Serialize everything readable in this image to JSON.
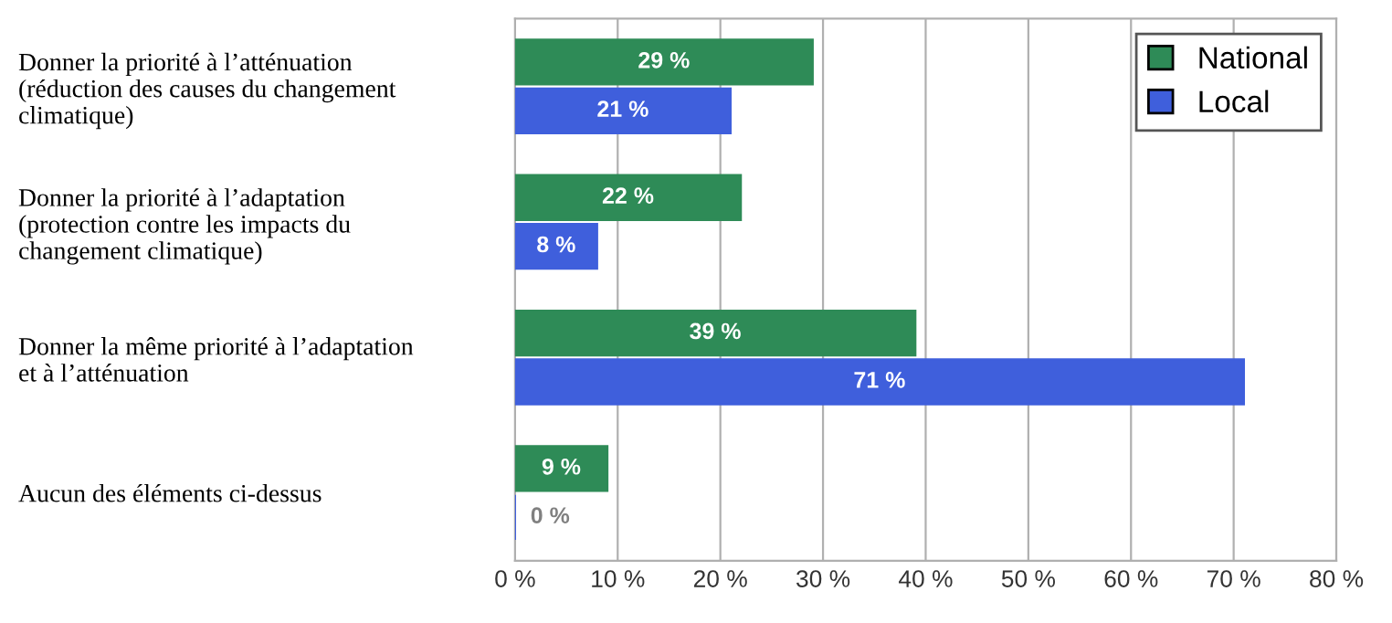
{
  "chart_data": {
    "type": "bar",
    "orientation": "horizontal",
    "categories": [
      "Donner la priorité à l’atténuation\n(réduction des causes du changement\nclimatique)",
      "Donner la priorité à l’adaptation\n(protection contre les impacts du\nchangement climatique)",
      "Donner la même priorité à l’adaptation\net à l’atténuation",
      "Aucun des éléments ci-dessus"
    ],
    "series": [
      {
        "name": "National",
        "color": "#2e8b57",
        "values": [
          29,
          22,
          39,
          9
        ],
        "value_labels": [
          "29 %",
          "22 %",
          "39 %",
          "9 %"
        ]
      },
      {
        "name": "Local",
        "color": "#3f5fdc",
        "values": [
          21,
          8,
          71,
          0
        ],
        "value_labels": [
          "21 %",
          "8 %",
          "71 %",
          "0 %"
        ]
      }
    ],
    "xlim": [
      0,
      80
    ],
    "xticks": [
      {
        "value": 0,
        "label": "0 %"
      },
      {
        "value": 10,
        "label": "10 %"
      },
      {
        "value": 20,
        "label": "20 %"
      },
      {
        "value": 30,
        "label": "30 %"
      },
      {
        "value": 40,
        "label": "40 %"
      },
      {
        "value": 50,
        "label": "50 %"
      },
      {
        "value": 60,
        "label": "60 %"
      },
      {
        "value": 70,
        "label": "70 %"
      },
      {
        "value": 80,
        "label": "80 %"
      }
    ],
    "grid": "x",
    "legend": "top right"
  }
}
